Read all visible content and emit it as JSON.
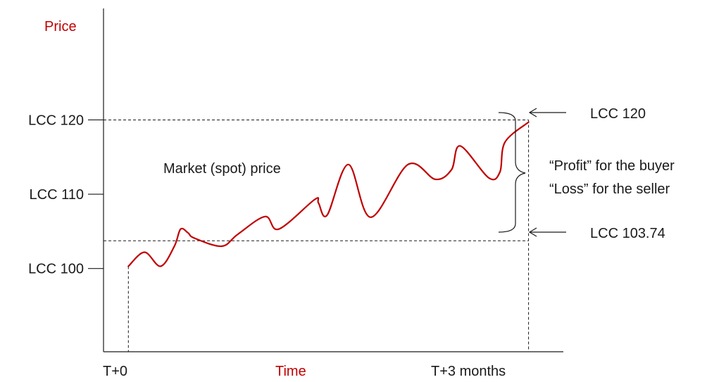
{
  "chart_data": {
    "type": "line",
    "xlabel": "Time",
    "ylabel": "Price",
    "x_ticks": [
      "T+0",
      "T+3 months"
    ],
    "y_ticks": [
      {
        "value": 100,
        "label": "LCC 100"
      },
      {
        "value": 110,
        "label": "LCC 110"
      },
      {
        "value": 120,
        "label": "LCC 120"
      }
    ],
    "ylim": [
      88.8,
      135
    ],
    "xlim": [
      -0.2,
      3.5
    ],
    "series": [
      {
        "label": "Market (spot) price",
        "x": [
          0,
          0.13,
          0.26,
          0.37,
          0.42,
          0.48,
          0.53,
          0.75,
          0.88,
          1.1,
          1.21,
          1.5,
          1.53,
          1.6,
          1.77,
          1.95,
          2.25,
          2.47,
          2.6,
          2.67,
          2.9,
          2.99,
          3.03,
          3.22
        ],
        "y": [
          100.3,
          102.2,
          100.3,
          103.0,
          105.3,
          104.8,
          104.1,
          103.0,
          104.6,
          107.0,
          105.3,
          109.3,
          108.8,
          107.2,
          114.0,
          106.9,
          114.0,
          112.0,
          113.3,
          116.5,
          112.2,
          113.0,
          117.0,
          119.7
        ]
      }
    ],
    "reference_lines": [
      {
        "orientation": "horizontal",
        "value": 120,
        "style": "dashed"
      },
      {
        "orientation": "horizontal",
        "value": 103.74,
        "style": "dashed"
      },
      {
        "orientation": "vertical",
        "value": 0,
        "style": "dashed"
      },
      {
        "orientation": "vertical",
        "value": 3.22,
        "style": "dashed"
      }
    ],
    "annotations": {
      "upper_value": "LCC 120",
      "lower_value": "LCC 103.74",
      "profit_text": "“Profit” for the buyer",
      "loss_text": "“Loss” for the seller"
    },
    "colors": {
      "series": "#c00000",
      "axis_labels": "#c00000",
      "axes": "#1a1a1a",
      "text": "#1a1a1a"
    }
  }
}
